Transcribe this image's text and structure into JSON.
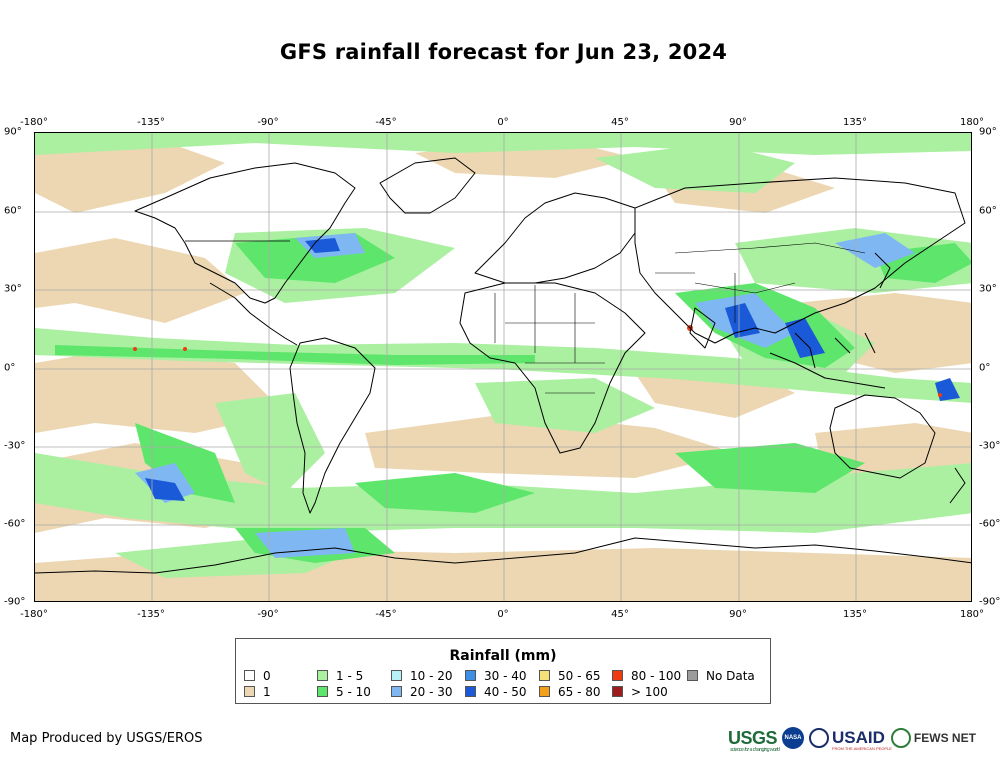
{
  "title": "GFS rainfall forecast for Jun 23, 2024",
  "lon_ticks": [
    "-180°",
    "-135°",
    "-90°",
    "-45°",
    "0°",
    "45°",
    "90°",
    "135°",
    "180°"
  ],
  "lat_ticks": [
    "90°",
    "60°",
    "30°",
    "0°",
    "-30°",
    "-60°",
    "-90°"
  ],
  "lon_values": [
    -180,
    -135,
    -90,
    -45,
    0,
    45,
    90,
    135,
    180
  ],
  "lat_values": [
    90,
    60,
    30,
    0,
    -30,
    -60,
    -90
  ],
  "legend": {
    "title": "Rainfall (mm)",
    "items": [
      {
        "label": "0",
        "color": "#ffffff"
      },
      {
        "label": "1",
        "color": "#ecd7b2"
      },
      {
        "label": "1 - 5",
        "color": "#aaf0a0"
      },
      {
        "label": "5 - 10",
        "color": "#5ee66c"
      },
      {
        "label": "10 - 20",
        "color": "#b8f0f5"
      },
      {
        "label": "20 - 30",
        "color": "#7fb7f3"
      },
      {
        "label": "30 - 40",
        "color": "#3d8fe6"
      },
      {
        "label": "40 - 50",
        "color": "#1a5ad8"
      },
      {
        "label": "50 - 65",
        "color": "#f5e07a"
      },
      {
        "label": "65 - 80",
        "color": "#f3a11a"
      },
      {
        "label": "80 - 100",
        "color": "#f23a10"
      },
      {
        "label": "> 100",
        "color": "#a01c1c"
      },
      {
        "label": "No Data",
        "color": "#9c9c9c"
      }
    ]
  },
  "credit": "Map Produced by USGS/EROS",
  "logos": {
    "usgs": "USGS",
    "usgs_tagline": "science for a changing world",
    "nasa": "NASA",
    "usaid": "USAID",
    "usaid_tagline": "FROM THE AMERICAN PEOPLE",
    "fews": "FEWS NET"
  },
  "map_layers": {
    "land_outline_color": "#000000",
    "graticule_color": "#aaaaaa"
  }
}
